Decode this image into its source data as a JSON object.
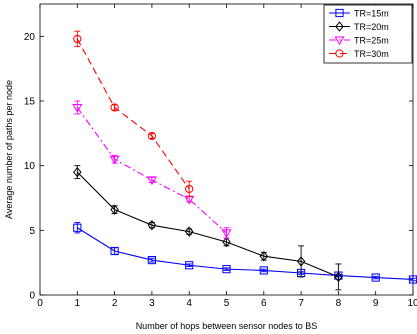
{
  "chart_data": {
    "type": "line",
    "title": "",
    "xlabel": "Number of hops between sensor nodes to BS",
    "ylabel": "Average number of paths per node",
    "xlim": [
      0,
      10
    ],
    "ylim": [
      0,
      22.5
    ],
    "xticks": [
      0,
      1,
      2,
      3,
      4,
      5,
      6,
      7,
      8,
      9,
      10
    ],
    "yticks": [
      0,
      5,
      10,
      15,
      20
    ],
    "grid": false,
    "legend_position": "top-right",
    "series": [
      {
        "name": "TR=15m",
        "color": "#0000ff",
        "line_style": "solid",
        "marker": "square",
        "x": [
          1,
          2,
          3,
          4,
          5,
          6,
          7,
          8,
          9,
          10
        ],
        "y": [
          5.2,
          3.4,
          2.7,
          2.3,
          2.0,
          1.9,
          1.7,
          1.5,
          1.35,
          1.2
        ],
        "err": [
          0.4,
          0.25,
          0.15,
          0.1,
          0.1,
          0.1,
          0.1,
          0.1,
          0.1,
          0.1
        ]
      },
      {
        "name": "TR=20m",
        "color": "#000000",
        "line_style": "solid",
        "marker": "diamond",
        "x": [
          1,
          2,
          3,
          4,
          5,
          6,
          7,
          8
        ],
        "y": [
          9.5,
          6.6,
          5.4,
          4.9,
          4.1,
          3.0,
          2.6,
          1.4
        ],
        "err": [
          0.5,
          0.3,
          0.2,
          0.2,
          0.3,
          0.3,
          1.2,
          1.0
        ]
      },
      {
        "name": "TR=25m",
        "color": "#ff00ff",
        "line_style": "dashdot",
        "marker": "triangle-down",
        "x": [
          1,
          2,
          3,
          4,
          5
        ],
        "y": [
          14.5,
          10.5,
          8.9,
          7.4,
          4.8
        ],
        "err": [
          0.5,
          0.3,
          0.2,
          0.2,
          0.4
        ]
      },
      {
        "name": "TR=30m",
        "color": "#ff0000",
        "line_style": "dashed",
        "marker": "circle",
        "x": [
          1,
          2,
          3,
          4
        ],
        "y": [
          19.8,
          14.5,
          12.3,
          8.2
        ],
        "err": [
          0.6,
          0.2,
          0.2,
          0.6
        ]
      }
    ]
  }
}
